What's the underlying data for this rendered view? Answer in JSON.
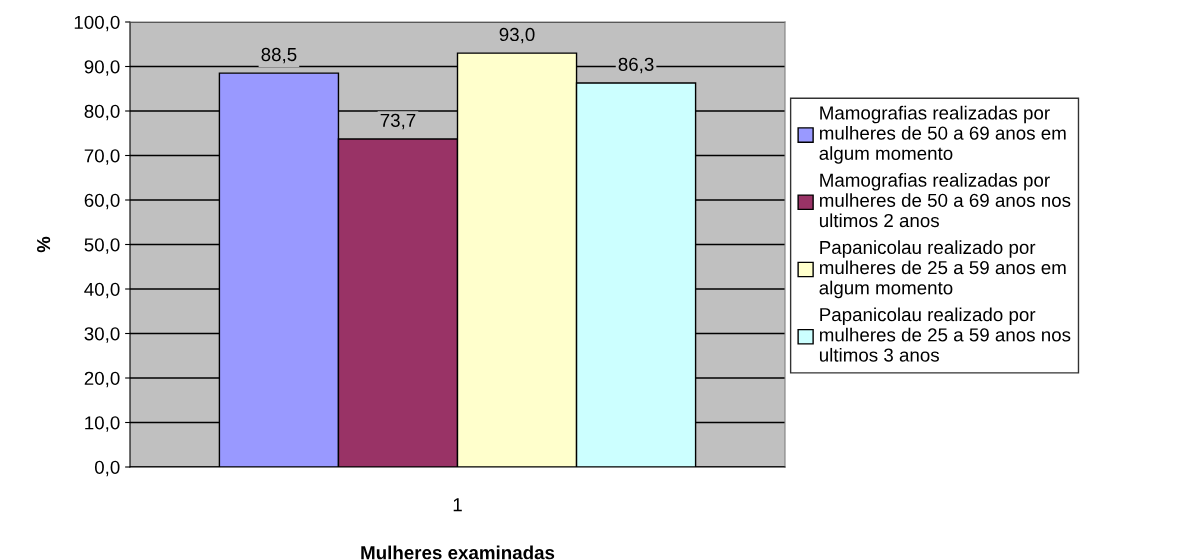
{
  "chart_data": {
    "type": "bar",
    "xlabel": "Mulheres examinadas",
    "ylabel": "%",
    "categories": [
      "1"
    ],
    "series": [
      {
        "name": "Mamografias realizadas por mulheres de 50 a 69 anos em algum momento",
        "color": "#9999ff",
        "values": [
          88.5
        ],
        "value_labels": [
          "88,5"
        ]
      },
      {
        "name": "Mamografias realizadas por mulheres de 50 a 69 anos nos ultimos 2 anos",
        "color": "#993366",
        "values": [
          73.7
        ],
        "value_labels": [
          "73,7"
        ]
      },
      {
        "name": "Papanicolau realizado por mulheres de 25 a 59 anos em algum momento",
        "color": "#ffffcc",
        "values": [
          93.0
        ],
        "value_labels": [
          "93,0"
        ]
      },
      {
        "name": "Papanicolau realizado por mulheres de 25 a 59 anos nos ultimos 3 anos",
        "color": "#ccffff",
        "values": [
          86.3
        ],
        "value_labels": [
          "86,3"
        ]
      }
    ],
    "ylim": [
      0,
      100
    ],
    "yticks": [
      {
        "value": 0,
        "label": "0,0"
      },
      {
        "value": 10,
        "label": "10,0"
      },
      {
        "value": 20,
        "label": "20,0"
      },
      {
        "value": 30,
        "label": "30,0"
      },
      {
        "value": 40,
        "label": "40,0"
      },
      {
        "value": 50,
        "label": "50,0"
      },
      {
        "value": 60,
        "label": "60,0"
      },
      {
        "value": 70,
        "label": "70,0"
      },
      {
        "value": 80,
        "label": "80,0"
      },
      {
        "value": 90,
        "label": "90,0"
      },
      {
        "value": 100,
        "label": "100,0"
      }
    ],
    "grid": "y",
    "legend": "right"
  }
}
